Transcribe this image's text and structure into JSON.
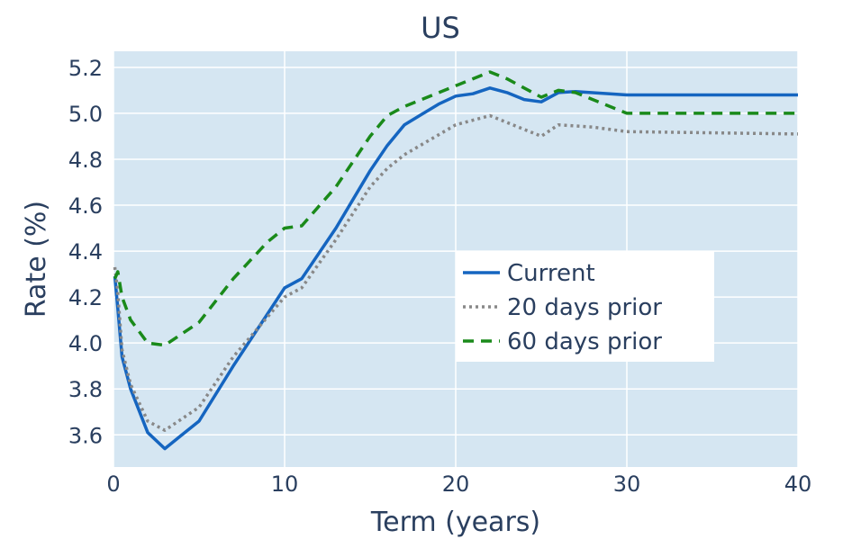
{
  "chart_data": {
    "type": "line",
    "title": "US",
    "xlabel": "Term (years)",
    "ylabel": "Rate (%)",
    "xlim": [
      0,
      40
    ],
    "ylim": [
      3.46,
      5.27
    ],
    "xticks": [
      0,
      10,
      20,
      30,
      40
    ],
    "xtick_labels": [
      "0",
      "10",
      "20",
      "30",
      "40"
    ],
    "yticks": [
      3.6,
      3.8,
      4.0,
      4.2,
      4.4,
      4.6,
      4.8,
      5.0,
      5.2
    ],
    "ytick_labels": [
      "3.6",
      "3.8",
      "4.0",
      "4.2",
      "4.4",
      "4.6",
      "4.8",
      "5.0",
      "5.2"
    ],
    "grid": true,
    "legend_position": "right-middle",
    "plot_background": "#d5e6f2",
    "series": [
      {
        "name": "Current",
        "color": "#1565c0",
        "dash": "solid",
        "x": [
          0.08,
          0.25,
          0.5,
          1,
          2,
          3,
          4,
          5,
          7,
          10,
          11,
          13,
          15,
          16,
          17,
          19,
          20,
          21,
          22,
          23,
          24,
          25,
          26,
          27,
          30,
          40
        ],
        "y": [
          4.29,
          4.15,
          3.94,
          3.8,
          3.61,
          3.54,
          3.6,
          3.66,
          3.9,
          4.24,
          4.28,
          4.5,
          4.75,
          4.86,
          4.95,
          5.04,
          5.075,
          5.085,
          5.11,
          5.09,
          5.06,
          5.05,
          5.09,
          5.095,
          5.08,
          5.08
        ]
      },
      {
        "name": "20 days prior",
        "color": "#888888",
        "dash": "dotted",
        "x": [
          0.08,
          0.25,
          0.5,
          1,
          2,
          3,
          5,
          7,
          10,
          11,
          13,
          15,
          16,
          17,
          20,
          22,
          24,
          25,
          26,
          28,
          30,
          40
        ],
        "y": [
          4.33,
          4.22,
          3.97,
          3.82,
          3.66,
          3.62,
          3.72,
          3.94,
          4.2,
          4.24,
          4.45,
          4.68,
          4.76,
          4.82,
          4.95,
          4.99,
          4.93,
          4.9,
          4.95,
          4.94,
          4.92,
          4.91
        ]
      },
      {
        "name": "60 days prior",
        "color": "#1a8a1a",
        "dash": "dashed",
        "x": [
          0.08,
          0.25,
          0.5,
          1,
          2,
          3,
          5,
          7,
          9,
          10,
          11,
          13,
          15,
          16,
          17,
          20,
          22,
          23,
          25,
          26,
          27,
          30,
          40
        ],
        "y": [
          4.28,
          4.31,
          4.2,
          4.1,
          4.0,
          3.99,
          4.09,
          4.28,
          4.44,
          4.5,
          4.51,
          4.68,
          4.9,
          4.99,
          5.03,
          5.12,
          5.18,
          5.15,
          5.07,
          5.1,
          5.09,
          5.0,
          5.0
        ]
      }
    ]
  }
}
